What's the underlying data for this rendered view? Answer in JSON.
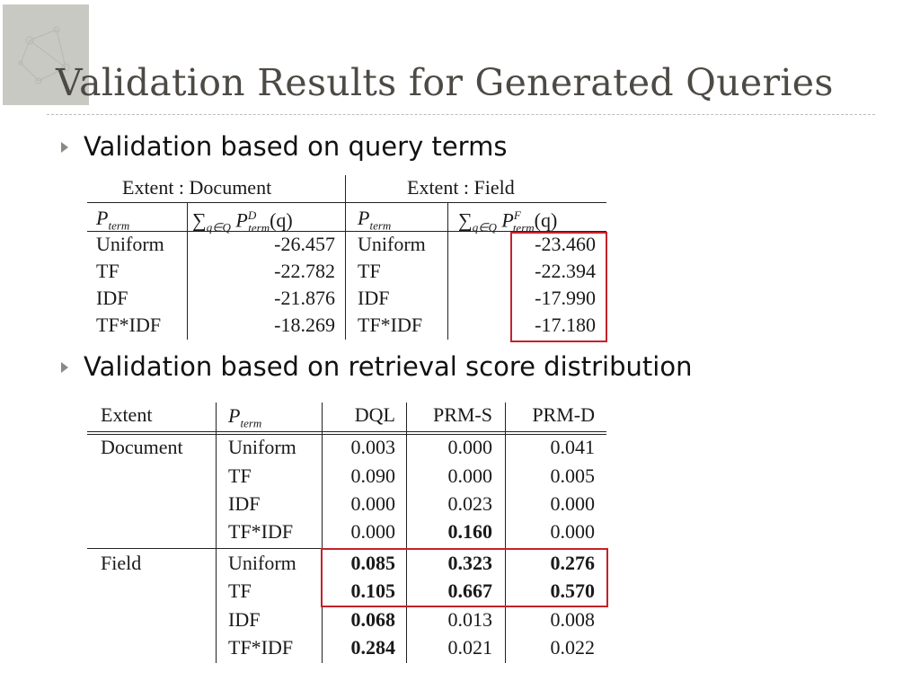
{
  "slide": {
    "title": "Validation Results for Generated Queries",
    "bullet1": "Validation based on query terms",
    "bullet2": "Validation based on retrieval score distribution"
  },
  "table1": {
    "group_doc": "Extent : Document",
    "group_field": "Extent : Field",
    "hdr_pterm": "P",
    "hdr_pterm_sub": "term",
    "hdr_sum_sub": "q∈Q",
    "hdr_sum_doc_sup": "D",
    "hdr_sum_field_sup": "F",
    "hdr_sum_tail": "(q)",
    "rows": [
      {
        "doc_p": "Uniform",
        "doc_v": "-26.457",
        "field_p": "Uniform",
        "field_v": "-23.460"
      },
      {
        "doc_p": "TF",
        "doc_v": "-22.782",
        "field_p": "TF",
        "field_v": "-22.394"
      },
      {
        "doc_p": "IDF",
        "doc_v": "-21.876",
        "field_p": "IDF",
        "field_v": "-17.990"
      },
      {
        "doc_p": "TF*IDF",
        "doc_v": "-18.269",
        "field_p": "TF*IDF",
        "field_v": "-17.180"
      }
    ]
  },
  "table2": {
    "hdr_extent": "Extent",
    "hdr_p": "P",
    "hdr_p_sub": "term",
    "hdr_dql": "DQL",
    "hdr_prms": "PRM-S",
    "hdr_prmd": "PRM-D",
    "groups": [
      {
        "extent": "Document",
        "rows": [
          {
            "p": "Uniform",
            "dql": "0.003",
            "prms": "0.000",
            "prmd": "0.041"
          },
          {
            "p": "TF",
            "dql": "0.090",
            "prms": "0.000",
            "prmd": "0.005"
          },
          {
            "p": "IDF",
            "dql": "0.000",
            "prms": "0.023",
            "prmd": "0.000"
          },
          {
            "p": "TF*IDF",
            "dql": "0.000",
            "prms": "0.160",
            "prmd": "0.000"
          }
        ]
      },
      {
        "extent": "Field",
        "rows": [
          {
            "p": "Uniform",
            "dql": "0.085",
            "prms": "0.323",
            "prmd": "0.276"
          },
          {
            "p": "TF",
            "dql": "0.105",
            "prms": "0.667",
            "prmd": "0.570"
          },
          {
            "p": "IDF",
            "dql": "0.068",
            "prms": "0.013",
            "prmd": "0.008"
          },
          {
            "p": "TF*IDF",
            "dql": "0.284",
            "prms": "0.021",
            "prmd": "0.022"
          }
        ]
      }
    ]
  },
  "colors": {
    "accent": "#c3232b",
    "title": "#4d4a45"
  }
}
